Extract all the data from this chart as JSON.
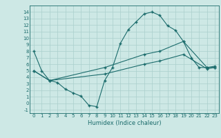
{
  "title": "",
  "xlabel": "Humidex (Indice chaleur)",
  "background_color": "#cde8e5",
  "line_color": "#1a6b6b",
  "grid_color": "#aacfcc",
  "xlim": [
    -0.5,
    23.5
  ],
  "ylim": [
    -1.5,
    15.0
  ],
  "xticks": [
    0,
    1,
    2,
    3,
    4,
    5,
    6,
    7,
    8,
    9,
    10,
    11,
    12,
    13,
    14,
    15,
    16,
    17,
    18,
    19,
    20,
    21,
    22,
    23
  ],
  "yticks": [
    -1,
    0,
    1,
    2,
    3,
    4,
    5,
    6,
    7,
    8,
    9,
    10,
    11,
    12,
    13,
    14
  ],
  "line1_x": [
    0,
    1,
    2,
    3,
    4,
    5,
    6,
    7,
    8,
    9,
    10,
    11,
    12,
    13,
    14,
    15,
    16,
    17,
    18,
    19,
    20,
    21,
    22,
    23
  ],
  "line1_y": [
    8.0,
    5.0,
    3.5,
    3.2,
    2.2,
    1.6,
    1.1,
    -0.3,
    -0.5,
    3.5,
    5.5,
    9.2,
    11.3,
    12.5,
    13.7,
    14.0,
    13.5,
    11.9,
    11.2,
    9.5,
    7.0,
    5.5,
    5.5,
    5.5
  ],
  "line2_x": [
    0,
    2,
    9,
    14,
    16,
    19,
    22,
    23
  ],
  "line2_y": [
    5.0,
    3.5,
    5.5,
    7.5,
    8.0,
    9.5,
    5.5,
    5.7
  ],
  "line3_x": [
    0,
    2,
    9,
    14,
    16,
    19,
    22,
    23
  ],
  "line3_y": [
    5.0,
    3.5,
    4.5,
    6.0,
    6.5,
    7.5,
    5.3,
    5.5
  ],
  "marker": "+",
  "markersize": 3,
  "linewidth": 0.8,
  "tick_fontsize": 5,
  "xlabel_fontsize": 6
}
